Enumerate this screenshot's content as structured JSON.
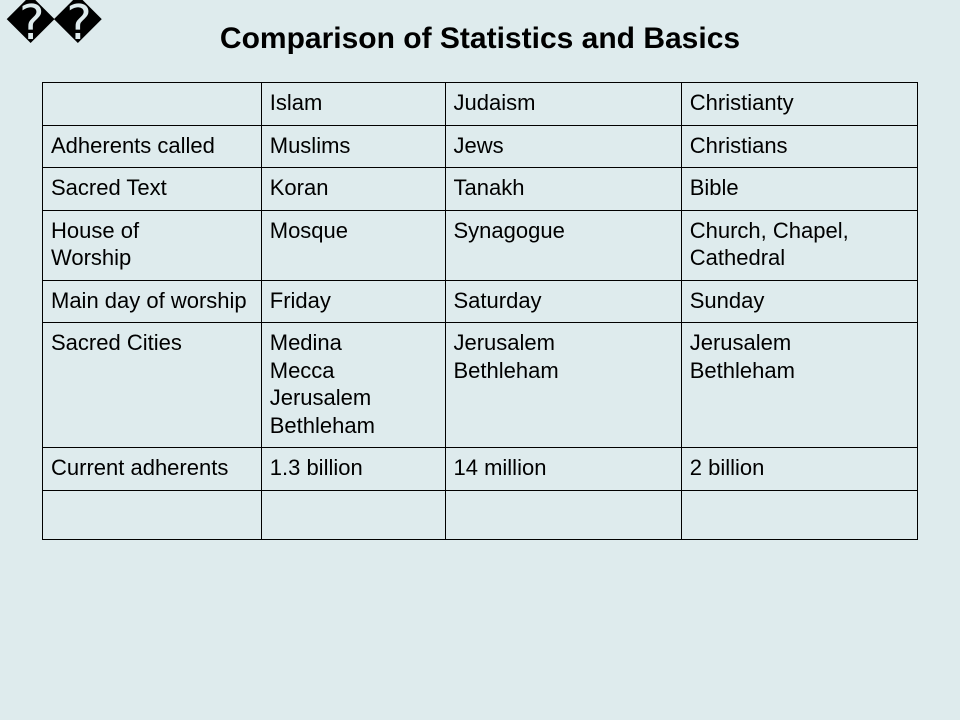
{
  "glyphs": "��",
  "title": "Comparison of Statistics and Basics",
  "table": {
    "type": "table",
    "background_color": "#deebed",
    "border_color": "#000000",
    "font_family": "Arial",
    "cell_fontsize": 22,
    "title_fontsize": 30,
    "column_widths_pct": [
      25,
      21,
      27,
      27
    ],
    "columns": [
      "",
      "Islam",
      "Judaism",
      "Christianty"
    ],
    "rows": [
      {
        "label": [
          "Adherents called"
        ],
        "cells": [
          [
            "Muslims"
          ],
          [
            "Jews"
          ],
          [
            "Christians"
          ]
        ]
      },
      {
        "label": [
          "Sacred Text"
        ],
        "cells": [
          [
            "Koran"
          ],
          [
            "Tanakh"
          ],
          [
            "Bible"
          ]
        ]
      },
      {
        "label": [
          "House of",
          "Worship"
        ],
        "cells": [
          [
            "Mosque"
          ],
          [
            "Synagogue"
          ],
          [
            "Church, Chapel, Cathedral"
          ]
        ]
      },
      {
        "label": [
          "Main day of worship"
        ],
        "cells": [
          [
            "Friday"
          ],
          [
            "Saturday"
          ],
          [
            "Sunday"
          ]
        ]
      },
      {
        "label": [
          "Sacred Cities"
        ],
        "cells": [
          [
            "Medina",
            "Mecca",
            "Jerusalem",
            "Bethleham"
          ],
          [
            "Jerusalem",
            "Bethleham"
          ],
          [
            "Jerusalem",
            "Bethleham"
          ]
        ]
      },
      {
        "label": [
          "Current adherents"
        ],
        "cells": [
          [
            "1.3 billion"
          ],
          [
            "14 million"
          ],
          [
            "2 billion"
          ]
        ]
      }
    ],
    "trailing_empty_row": true
  }
}
